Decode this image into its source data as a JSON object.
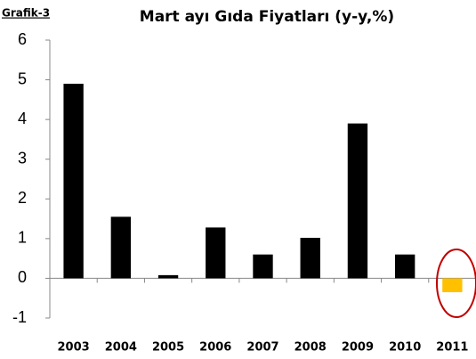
{
  "chart_data": {
    "type": "bar",
    "label": "Grafik-3",
    "title": "Mart ayı Gıda Fiyatları (y-y,%)",
    "categories": [
      "2003",
      "2004",
      "2005",
      "2006",
      "2007",
      "2008",
      "2009",
      "2010",
      "2011"
    ],
    "values": [
      4.9,
      1.55,
      0.08,
      1.28,
      0.6,
      1.02,
      3.9,
      0.6,
      -0.35
    ],
    "colors": [
      "#000000",
      "#000000",
      "#000000",
      "#000000",
      "#000000",
      "#000000",
      "#000000",
      "#000000",
      "#ffc000"
    ],
    "ylim": [
      -1,
      6
    ],
    "yticks": [
      -1,
      0,
      1,
      2,
      3,
      4,
      5,
      6
    ],
    "grid": false
  }
}
